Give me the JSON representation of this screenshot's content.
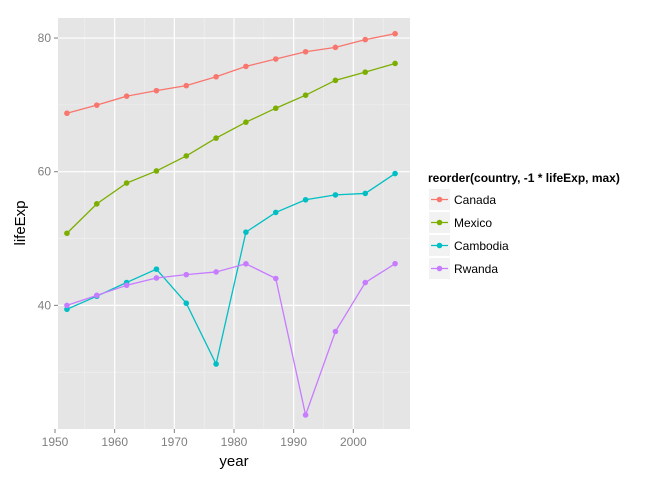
{
  "chart_data": {
    "type": "line",
    "xlabel": "year",
    "ylabel": "lifeExp",
    "xlim": [
      1950.5,
      2009.5
    ],
    "ylim": [
      21.5,
      83.0
    ],
    "x_ticks": [
      1950,
      1960,
      1970,
      1980,
      1990,
      2000
    ],
    "y_ticks": [
      40,
      60,
      80
    ],
    "x_tick_labels": [
      "1950",
      "1960",
      "1970",
      "1980",
      "1990",
      "2000"
    ],
    "y_tick_labels": [
      "40",
      "60",
      "80"
    ],
    "grid": true,
    "legend_position": "right",
    "legend_title": "reorder(country, -1 * lifeExp, max)",
    "x": [
      1952,
      1957,
      1962,
      1967,
      1972,
      1977,
      1982,
      1987,
      1992,
      1997,
      2002,
      2007
    ],
    "series": [
      {
        "name": "Canada",
        "color": "#F8766D",
        "values": [
          68.75,
          69.96,
          71.3,
          72.13,
          72.88,
          74.21,
          75.76,
          76.86,
          77.95,
          78.61,
          79.77,
          80.65
        ]
      },
      {
        "name": "Mexico",
        "color": "#7CAE00",
        "values": [
          50.79,
          55.19,
          58.3,
          60.11,
          62.36,
          65.03,
          67.41,
          69.5,
          71.45,
          73.67,
          74.9,
          76.2
        ]
      },
      {
        "name": "Cambodia",
        "color": "#00BFC4",
        "values": [
          39.42,
          41.37,
          43.42,
          45.42,
          40.32,
          31.22,
          50.96,
          53.91,
          55.8,
          56.53,
          56.75,
          59.72
        ]
      },
      {
        "name": "Rwanda",
        "color": "#C77CFF",
        "values": [
          40.0,
          41.5,
          43.0,
          44.1,
          44.6,
          45.0,
          46.22,
          44.02,
          23.6,
          36.09,
          43.41,
          46.24
        ]
      }
    ]
  }
}
